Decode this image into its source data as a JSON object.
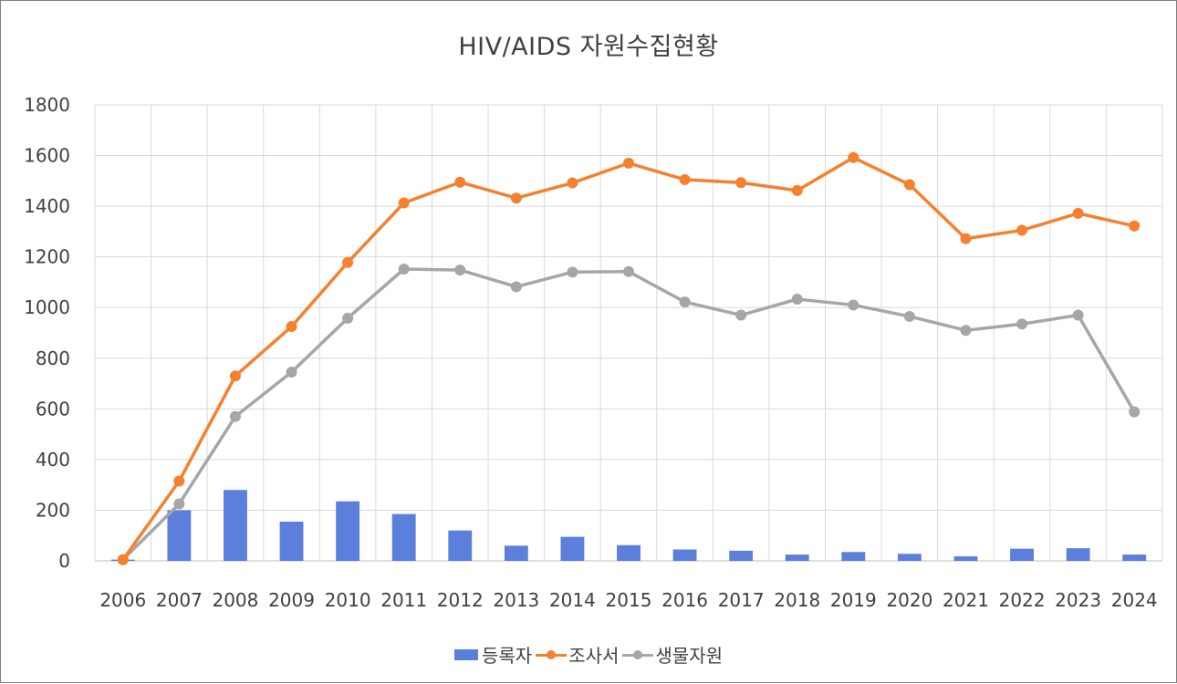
{
  "chart_data": {
    "type": "bar+line",
    "title": "HIV/AIDS 자원수집현황",
    "categories": [
      "2006",
      "2007",
      "2008",
      "2009",
      "2010",
      "2011",
      "2012",
      "2013",
      "2014",
      "2015",
      "2016",
      "2017",
      "2018",
      "2019",
      "2020",
      "2021",
      "2022",
      "2023",
      "2024"
    ],
    "series": [
      {
        "name": "등록자",
        "kind": "bar",
        "color": "#5b7fdb",
        "values": [
          5,
          200,
          280,
          155,
          235,
          185,
          120,
          60,
          95,
          62,
          45,
          40,
          25,
          35,
          28,
          18,
          48,
          50,
          25
        ]
      },
      {
        "name": "조사서",
        "kind": "line",
        "color": "#f5812f",
        "values": [
          5,
          315,
          730,
          925,
          1178,
          1413,
          1495,
          1432,
          1492,
          1570,
          1505,
          1493,
          1462,
          1592,
          1485,
          1272,
          1305,
          1372,
          1322
        ]
      },
      {
        "name": "생물자원",
        "kind": "line",
        "color": "#a6a6a6",
        "values": [
          5,
          225,
          570,
          745,
          958,
          1152,
          1148,
          1082,
          1140,
          1142,
          1022,
          970,
          1033,
          1010,
          965,
          910,
          935,
          970,
          588
        ]
      }
    ],
    "yTicks": [
      "0",
      "200",
      "400",
      "600",
      "800",
      "1000",
      "1200",
      "1400",
      "1600",
      "1800"
    ],
    "ylim": [
      0,
      1800
    ],
    "grid": true,
    "legend": "bottom"
  }
}
